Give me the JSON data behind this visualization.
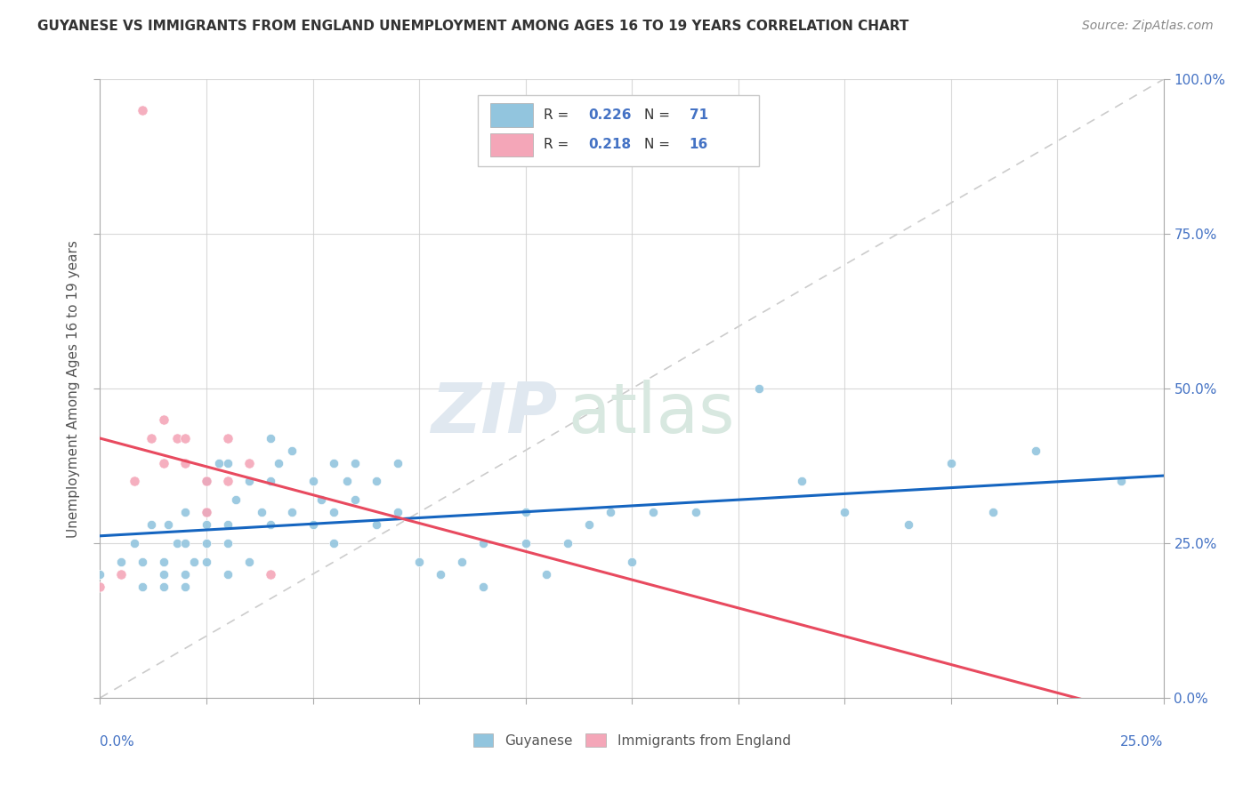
{
  "title": "GUYANESE VS IMMIGRANTS FROM ENGLAND UNEMPLOYMENT AMONG AGES 16 TO 19 YEARS CORRELATION CHART",
  "source": "Source: ZipAtlas.com",
  "ylabel": "Unemployment Among Ages 16 to 19 years",
  "xmin": 0.0,
  "xmax": 0.25,
  "ymin": 0.0,
  "ymax": 1.0,
  "blue_color": "#92c5de",
  "pink_color": "#f4a6b8",
  "trend_blue": "#1565c0",
  "trend_pink": "#e84a5f",
  "r_guyanese": "0.226",
  "n_guyanese": "71",
  "r_england": "0.218",
  "n_england": "16",
  "guyanese_x": [
    0.0,
    0.005,
    0.008,
    0.01,
    0.01,
    0.012,
    0.015,
    0.015,
    0.015,
    0.016,
    0.018,
    0.02,
    0.02,
    0.02,
    0.02,
    0.022,
    0.025,
    0.025,
    0.025,
    0.025,
    0.025,
    0.028,
    0.03,
    0.03,
    0.03,
    0.03,
    0.032,
    0.035,
    0.035,
    0.038,
    0.04,
    0.04,
    0.04,
    0.042,
    0.045,
    0.045,
    0.05,
    0.05,
    0.052,
    0.055,
    0.055,
    0.055,
    0.058,
    0.06,
    0.06,
    0.065,
    0.065,
    0.07,
    0.07,
    0.075,
    0.08,
    0.085,
    0.09,
    0.09,
    0.1,
    0.1,
    0.105,
    0.11,
    0.115,
    0.12,
    0.125,
    0.13,
    0.14,
    0.155,
    0.165,
    0.175,
    0.19,
    0.2,
    0.21,
    0.22,
    0.24
  ],
  "guyanese_y": [
    0.2,
    0.22,
    0.25,
    0.18,
    0.22,
    0.28,
    0.18,
    0.2,
    0.22,
    0.28,
    0.25,
    0.18,
    0.2,
    0.25,
    0.3,
    0.22,
    0.22,
    0.25,
    0.28,
    0.3,
    0.35,
    0.38,
    0.2,
    0.25,
    0.28,
    0.38,
    0.32,
    0.22,
    0.35,
    0.3,
    0.28,
    0.35,
    0.42,
    0.38,
    0.3,
    0.4,
    0.28,
    0.35,
    0.32,
    0.25,
    0.3,
    0.38,
    0.35,
    0.32,
    0.38,
    0.28,
    0.35,
    0.3,
    0.38,
    0.22,
    0.2,
    0.22,
    0.18,
    0.25,
    0.25,
    0.3,
    0.2,
    0.25,
    0.28,
    0.3,
    0.22,
    0.3,
    0.3,
    0.5,
    0.35,
    0.3,
    0.28,
    0.38,
    0.3,
    0.4,
    0.35
  ],
  "england_x": [
    0.0,
    0.005,
    0.008,
    0.01,
    0.012,
    0.015,
    0.015,
    0.018,
    0.02,
    0.02,
    0.025,
    0.025,
    0.03,
    0.03,
    0.035,
    0.04
  ],
  "england_y": [
    0.18,
    0.2,
    0.35,
    0.95,
    0.42,
    0.38,
    0.45,
    0.42,
    0.38,
    0.42,
    0.3,
    0.35,
    0.35,
    0.42,
    0.38,
    0.2
  ]
}
